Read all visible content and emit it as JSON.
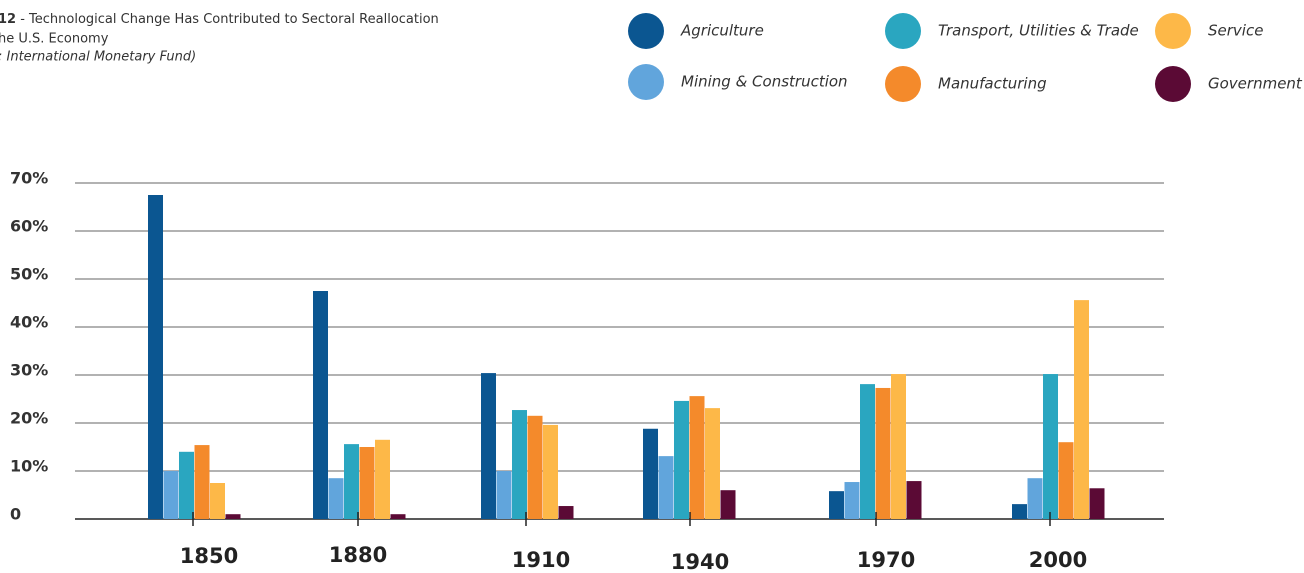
{
  "chart_data": {
    "type": "bar",
    "title_number": "12",
    "title_lines": [
      " - Technological Change Has Contributed to Sectoral Reallocation",
      "he U.S. Economy",
      ": International Monetary Fund)"
    ],
    "categories": [
      "1850",
      "1880",
      "1910",
      "1940",
      "1970",
      "2000"
    ],
    "series": [
      {
        "name": "Agriculture",
        "color": "#0b5691",
        "values": [
          67.5,
          47.5,
          30.4,
          18.8,
          5.8,
          3.1
        ]
      },
      {
        "name": "Mining & Construction",
        "color": "#61a5dc",
        "values": [
          10,
          8.5,
          10,
          13.1,
          7.7,
          8.5
        ]
      },
      {
        "name": "Transport, Utilities & Trade",
        "color": "#2aa6c0",
        "values": [
          14,
          15.6,
          22.7,
          24.6,
          28.1,
          30.2
        ]
      },
      {
        "name": "Manufacturing",
        "color": "#f48a2b",
        "values": [
          15.4,
          15,
          21.5,
          25.6,
          27.3,
          16
        ]
      },
      {
        "name": "Service",
        "color": "#fdb848",
        "values": [
          7.5,
          16.5,
          19.6,
          23.1,
          30.2,
          45.6
        ]
      },
      {
        "name": "Government",
        "color": "#5b0a35",
        "values": [
          1,
          1,
          2.7,
          6,
          7.9,
          6.4
        ]
      }
    ],
    "ylim": [
      0,
      70
    ],
    "yticks": [
      0,
      {
        "value": 10,
        "label": "10%"
      },
      {
        "value": 20,
        "label": "20%"
      },
      {
        "value": 30,
        "label": "30%"
      },
      {
        "value": 40,
        "label": "40%"
      },
      {
        "value": 50,
        "label": "50%"
      },
      {
        "value": 60,
        "label": "60%"
      },
      {
        "value": 70,
        "label": "70%"
      }
    ],
    "grid": true
  }
}
